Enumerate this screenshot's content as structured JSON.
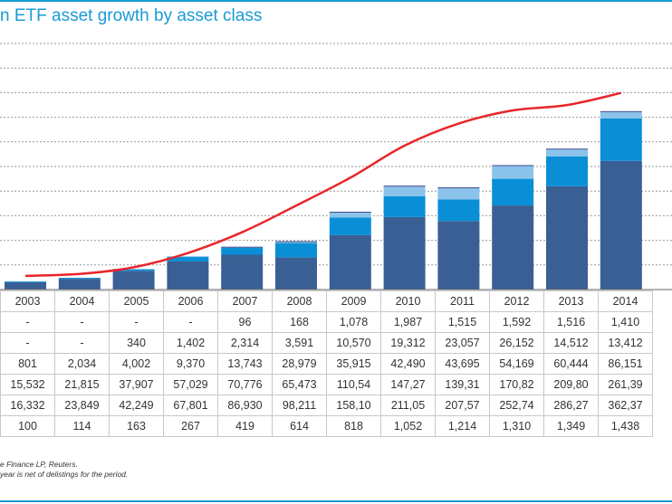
{
  "title": "n ETF asset growth by asset class",
  "chart_data": {
    "type": "bar",
    "stacked": true,
    "title": "n ETF asset growth by asset class",
    "categories": [
      "2003",
      "2004",
      "2005",
      "2006",
      "2007",
      "2008",
      "2009",
      "2010",
      "2011",
      "2012",
      "2013",
      "2014"
    ],
    "series": [
      {
        "values": [
          "-",
          "-",
          "-",
          "-",
          "96",
          "168",
          "1,078",
          "1,987",
          "1,515",
          "1,592",
          "1,516",
          "1,410"
        ],
        "color": "#3d4a8a"
      },
      {
        "values": [
          "-",
          "-",
          "340",
          "1,402",
          "2,314",
          "3,591",
          "10,570",
          "19,312",
          "23,057",
          "26,152",
          "14,512",
          "13,412"
        ],
        "color": "#8cc3ea"
      },
      {
        "values": [
          "801",
          "2,034",
          "4,002",
          "9,370",
          "13,743",
          "28,979",
          "35,915",
          "42,490",
          "43,695",
          "54,169",
          "60,444",
          "86,151"
        ],
        "color": "#0a8fd6"
      },
      {
        "values": [
          "15,532",
          "21,815",
          "37,907",
          "57,029",
          "70,776",
          "65,473",
          "110,54",
          "147,27",
          "139,31",
          "170,82",
          "209,80",
          "261,39"
        ],
        "color": "#3a5f94"
      },
      {
        "values": [
          "16,332",
          "23,849",
          "42,249",
          "67,801",
          "86,930",
          "98,211",
          "158,10",
          "211,05",
          "207,57",
          "252,74",
          "286,27",
          "362,37"
        ],
        "role": "total"
      },
      {
        "values": [
          "100",
          "114",
          "163",
          "267",
          "419",
          "614",
          "818",
          "1,052",
          "1,214",
          "1,310",
          "1,349",
          "1,438"
        ],
        "role": "line",
        "color": "#e8262a"
      }
    ],
    "ylim": [
      0,
      500000
    ],
    "y2lim": [
      0,
      1800
    ],
    "grid": true
  },
  "notes": [
    "e Finance LP, Reuters.",
    "year is net of delistings for the period."
  ]
}
